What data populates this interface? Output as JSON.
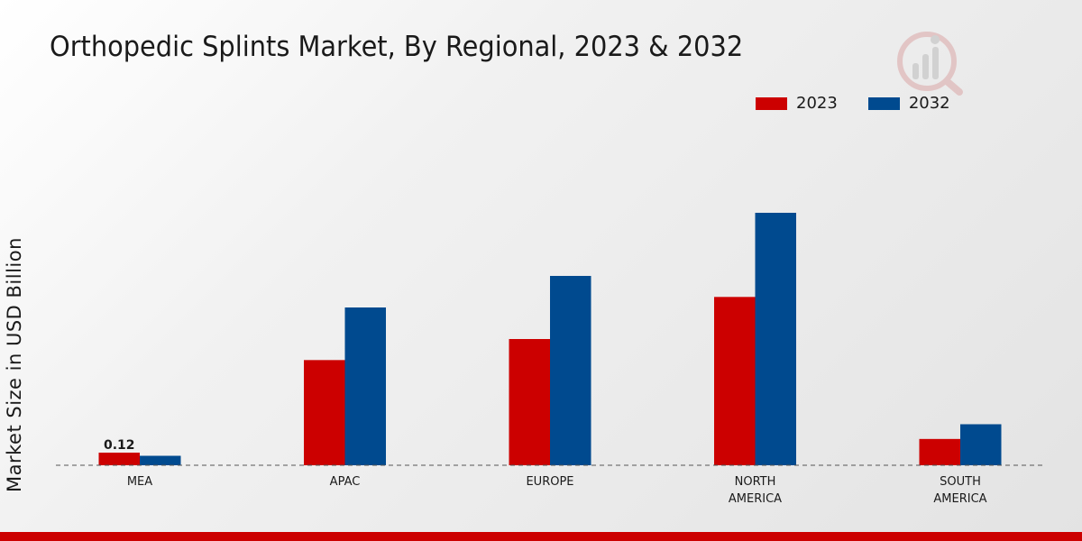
{
  "chart_data": {
    "type": "bar",
    "title": "Orthopedic Splints Market, By Regional, 2023 & 2032",
    "ylabel": "Market Size in USD Billion",
    "xlabel": "",
    "categories": [
      [
        "MEA"
      ],
      [
        "APAC"
      ],
      [
        "EUROPE"
      ],
      [
        "NORTH",
        "AMERICA"
      ],
      [
        "SOUTH",
        "AMERICA"
      ]
    ],
    "series": [
      {
        "name": "2023",
        "color": "#cc0000",
        "values": [
          0.12,
          1.0,
          1.2,
          1.6,
          0.25
        ]
      },
      {
        "name": "2032",
        "color": "#004a8f",
        "values": [
          0.09,
          1.5,
          1.8,
          2.4,
          0.39
        ]
      }
    ],
    "data_labels": [
      {
        "series": 0,
        "category": 0,
        "text": "0.12"
      }
    ],
    "ylim": [
      0,
      3.0
    ],
    "grid": false,
    "legend_position": "top-right"
  },
  "brand": {
    "footer_color": "#cc0000",
    "logo_icon": "market-research-logo-icon"
  }
}
